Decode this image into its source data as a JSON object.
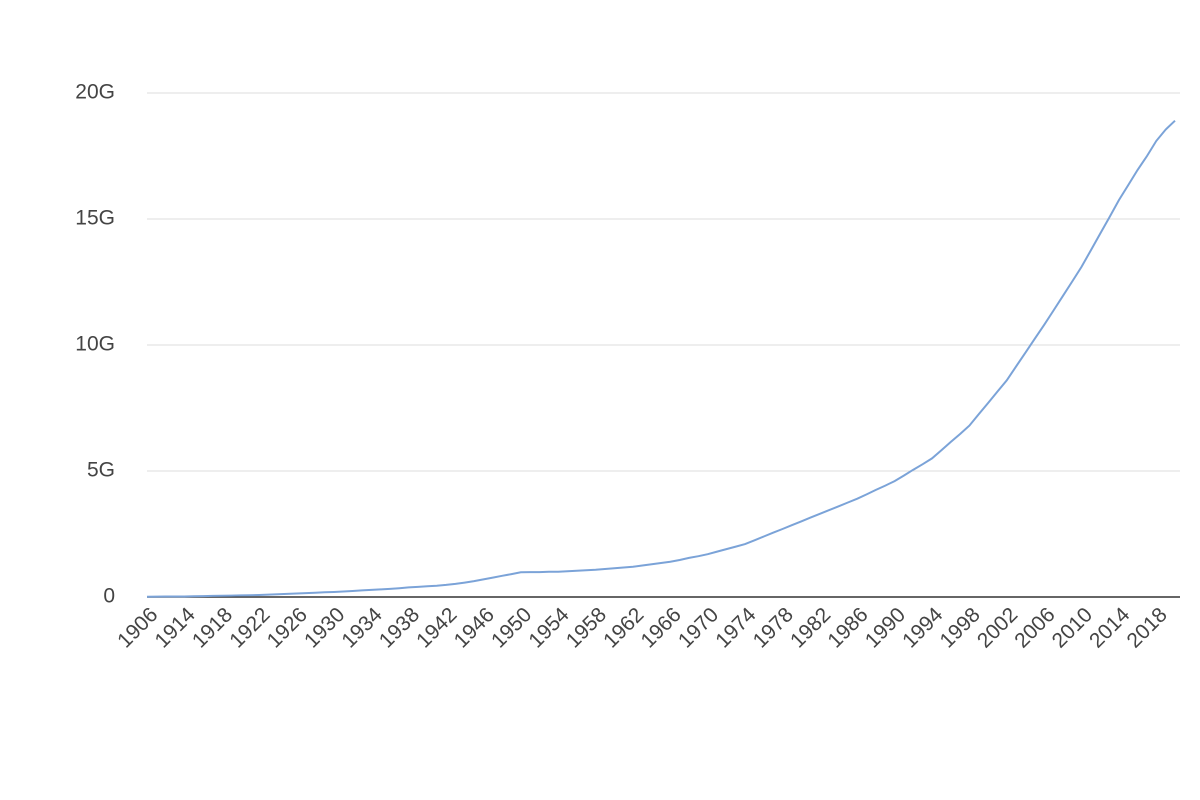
{
  "chart_data": {
    "type": "line",
    "categories": [
      "1906",
      null,
      null,
      null,
      "1914",
      null,
      null,
      null,
      "1918",
      null,
      null,
      null,
      "1922",
      null,
      null,
      null,
      "1926",
      null,
      null,
      null,
      "1930",
      null,
      null,
      null,
      "1934",
      null,
      null,
      null,
      "1938",
      null,
      null,
      null,
      "1942",
      null,
      null,
      null,
      "1946",
      null,
      null,
      null,
      "1950",
      null,
      null,
      null,
      "1954",
      null,
      null,
      null,
      "1958",
      null,
      null,
      null,
      "1962",
      null,
      null,
      null,
      "1966",
      null,
      null,
      null,
      "1970",
      null,
      null,
      null,
      "1974",
      null,
      null,
      null,
      "1978",
      null,
      null,
      null,
      "1982",
      null,
      null,
      null,
      "1986",
      null,
      null,
      null,
      "1990",
      null,
      null,
      null,
      "1994",
      null,
      null,
      null,
      "1998",
      null,
      null,
      null,
      "2002",
      null,
      null,
      null,
      "2006",
      null,
      null,
      null,
      "2010",
      null,
      null,
      null,
      "2014",
      null,
      null,
      null,
      "2018",
      null,
      null
    ],
    "values": [
      10000000.0,
      15000000.0,
      18000000.0,
      20000000.0,
      20000000.0,
      27000000.0,
      35000000.0,
      42000000.0,
      50000000.0,
      57000000.0,
      65000000.0,
      72000000.0,
      80000000.0,
      95000000.0,
      110000000.0,
      125000000.0,
      140000000.0,
      155000000.0,
      170000000.0,
      185000000.0,
      200000000.0,
      220000000.0,
      240000000.0,
      260000000.0,
      280000000.0,
      300000000.0,
      320000000.0,
      350000000.0,
      380000000.0,
      400000000.0,
      430000000.0,
      450000000.0,
      480000000.0,
      520000000.0,
      570000000.0,
      630000000.0,
      700000000.0,
      770000000.0,
      840000000.0,
      910000000.0,
      980000000.0,
      990000000.0,
      990000000.0,
      1000000000.0,
      1000000000.0,
      1020000000.0,
      1040000000.0,
      1060000000.0,
      1080000000.0,
      1110000000.0,
      1140000000.0,
      1170000000.0,
      1200000000.0,
      1250000000.0,
      1300000000.0,
      1350000000.0,
      1400000000.0,
      1470000000.0,
      1550000000.0,
      1620000000.0,
      1700000000.0,
      1800000000.0,
      1900000000.0,
      2000000000.0,
      2100000000.0,
      2250000000.0,
      2400000000.0,
      2550000000.0,
      2700000000.0,
      2850000000.0,
      3000000000.0,
      3150000000.0,
      3300000000.0,
      3450000000.0,
      3600000000.0,
      3750000000.0,
      3900000000.0,
      4070000000.0,
      4250000000.0,
      4420000000.0,
      4600000000.0,
      4820000000.0,
      5050000000.0,
      5270000000.0,
      5500000000.0,
      5820000000.0,
      6150000000.0,
      6470000000.0,
      6800000000.0,
      7250000000.0,
      7700000000.0,
      8150000000.0,
      8600000000.0,
      9150000000.0,
      9700000000.0,
      10250000000.0,
      10800000000.0,
      11370000000.0,
      11950000000.0,
      12520000000.0,
      13100000000.0,
      13760000000.0,
      14420000000.0,
      15080000000.0,
      15750000000.0,
      16350000000.0,
      16950000000.0,
      17500000000.0,
      18100000000.0,
      18550000000.0,
      18900000000.0
    ],
    "color": "#7ba3d8",
    "ylim": [
      0,
      20000000000
    ],
    "yticks": [
      0,
      {
        "value": 5000000000,
        "label": "5G"
      },
      {
        "value": 10000000000,
        "label": "10G"
      },
      {
        "value": 15000000000,
        "label": "15G"
      },
      {
        "value": 20000000000,
        "label": "20G"
      }
    ],
    "grid": true
  }
}
